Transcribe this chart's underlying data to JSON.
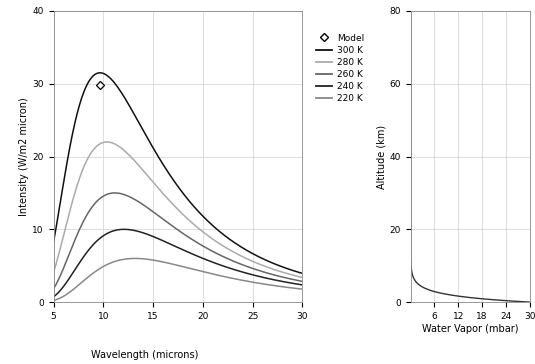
{
  "left_plot": {
    "xlabel": "Wavelength (microns)",
    "ylabel": "Intensity (W/m2 micron)",
    "xlim": [
      5,
      30
    ],
    "ylim": [
      0,
      40
    ],
    "xticks": [
      5,
      10,
      15,
      20,
      25,
      30
    ],
    "yticks": [
      0,
      10,
      20,
      30,
      40
    ],
    "grid_color": "#d0d0d0",
    "temps": [
      300,
      280,
      260,
      240,
      220
    ],
    "peaks": [
      31.5,
      22.0,
      15.0,
      10.0,
      6.0
    ],
    "colors": [
      "#111111",
      "#aaaaaa",
      "#666666",
      "#222222",
      "#888888"
    ],
    "model_wl": 9.65,
    "model_val": 29.8,
    "legend_colors": [
      "#111111",
      "#aaaaaa",
      "#666666",
      "#222222",
      "#888888"
    ],
    "legend_labels": [
      "300 K",
      "280 K",
      "260 K",
      "240 K",
      "220 K"
    ]
  },
  "right_plot": {
    "xlabel": "Water Vapor (mbar)",
    "ylabel": "Altitude (km)",
    "xlim": [
      0,
      30
    ],
    "ylim": [
      0,
      80
    ],
    "xticks": [
      6,
      12,
      18,
      24,
      30
    ],
    "yticks": [
      0,
      20,
      40,
      60,
      80
    ],
    "grid_color": "#d0d0d0",
    "curve_color": "#333333",
    "wv_scale": 1.8
  },
  "fig_bgcolor": "#f0f0f0"
}
